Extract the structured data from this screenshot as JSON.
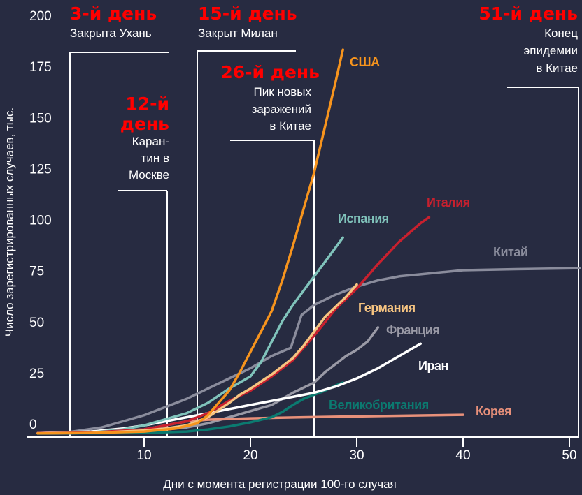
{
  "chart_data": {
    "type": "line",
    "title": "",
    "xlabel": "Дни с момента регистрации 100-го случая",
    "ylabel": "Число зарегистрированных случаев, тыс.",
    "xlim": [
      0,
      51
    ],
    "ylim": [
      0,
      200
    ],
    "xticks": [
      10,
      20,
      30,
      40,
      50
    ],
    "yticks": [
      0,
      25,
      50,
      75,
      100,
      125,
      150,
      175,
      200
    ],
    "grid": false,
    "legend": "inline labels at line ends",
    "background": "#272b41",
    "series": [
      {
        "name": "Китай",
        "color": "#8a8c9c",
        "points": [
          [
            0,
            0.3
          ],
          [
            3,
            0.8
          ],
          [
            6,
            3
          ],
          [
            8,
            6
          ],
          [
            10,
            9
          ],
          [
            12,
            13
          ],
          [
            14,
            17
          ],
          [
            16,
            22
          ],
          [
            18,
            27
          ],
          [
            20,
            32
          ],
          [
            22,
            38
          ],
          [
            23.8,
            42
          ],
          [
            24.8,
            58
          ],
          [
            26,
            63
          ],
          [
            28,
            68
          ],
          [
            30,
            72
          ],
          [
            32,
            75
          ],
          [
            34,
            77
          ],
          [
            36,
            78
          ],
          [
            38,
            79
          ],
          [
            40,
            80
          ],
          [
            45,
            80.5
          ],
          [
            51,
            81
          ]
        ]
      },
      {
        "name": "Франция",
        "color": "#9a9aa6",
        "points": [
          [
            0,
            0.1
          ],
          [
            10,
            1
          ],
          [
            14,
            3
          ],
          [
            16,
            5
          ],
          [
            18,
            8
          ],
          [
            20,
            11
          ],
          [
            22,
            14
          ],
          [
            23,
            17
          ],
          [
            24,
            20
          ],
          [
            26,
            25
          ],
          [
            27,
            30
          ],
          [
            28,
            34
          ],
          [
            29,
            38
          ],
          [
            30,
            41
          ],
          [
            31,
            45
          ],
          [
            32,
            52
          ]
        ]
      },
      {
        "name": "Корея",
        "color": "#e8907a",
        "points": [
          [
            0,
            0.2
          ],
          [
            5,
            0.6
          ],
          [
            10,
            2
          ],
          [
            12,
            4
          ],
          [
            14,
            6
          ],
          [
            16,
            6.8
          ],
          [
            20,
            7.5
          ],
          [
            25,
            8
          ],
          [
            30,
            8.4
          ],
          [
            35,
            8.8
          ],
          [
            40,
            9.2
          ]
        ]
      },
      {
        "name": "Великобритания",
        "color": "#0b7a70",
        "points": [
          [
            0,
            0
          ],
          [
            10,
            0.3
          ],
          [
            14,
            1
          ],
          [
            16,
            2
          ],
          [
            18,
            3.5
          ],
          [
            20,
            5.5
          ],
          [
            22,
            8
          ],
          [
            23,
            10.6
          ],
          [
            24,
            14
          ],
          [
            25,
            17
          ],
          [
            26,
            19
          ],
          [
            27,
            21
          ],
          [
            28,
            23.5
          ],
          [
            28.7,
            25
          ]
        ]
      },
      {
        "name": "Иран",
        "color": "#ffffff",
        "points": [
          [
            0,
            0.2
          ],
          [
            5,
            1
          ],
          [
            8,
            2.5
          ],
          [
            10,
            4
          ],
          [
            12,
            6
          ],
          [
            14,
            8
          ],
          [
            16,
            10
          ],
          [
            18,
            12
          ],
          [
            20,
            14
          ],
          [
            22,
            16
          ],
          [
            24,
            18
          ],
          [
            26,
            20
          ],
          [
            28,
            23
          ],
          [
            30,
            27
          ],
          [
            32,
            32
          ],
          [
            34,
            38
          ],
          [
            36,
            44
          ]
        ]
      },
      {
        "name": "Испания",
        "color": "#80c3bb",
        "points": [
          [
            0,
            0.2
          ],
          [
            5,
            0.5
          ],
          [
            8,
            2
          ],
          [
            10,
            4
          ],
          [
            12,
            7
          ],
          [
            14,
            10
          ],
          [
            16,
            15
          ],
          [
            18,
            22
          ],
          [
            20,
            28
          ],
          [
            21,
            35
          ],
          [
            22,
            45
          ],
          [
            23,
            55
          ],
          [
            24,
            63
          ],
          [
            25,
            70
          ],
          [
            26,
            77
          ],
          [
            27,
            84
          ],
          [
            28,
            91
          ],
          [
            28.7,
            96
          ]
        ]
      },
      {
        "name": "Италия",
        "color": "#c8202e",
        "points": [
          [
            0,
            0.2
          ],
          [
            5,
            0.5
          ],
          [
            10,
            2
          ],
          [
            12,
            4
          ],
          [
            14,
            6
          ],
          [
            16,
            10
          ],
          [
            18,
            16
          ],
          [
            20,
            21
          ],
          [
            22,
            28
          ],
          [
            24,
            36
          ],
          [
            26,
            48
          ],
          [
            28,
            61
          ],
          [
            30,
            71
          ],
          [
            32,
            83
          ],
          [
            34,
            94
          ],
          [
            36,
            103
          ],
          [
            36.8,
            106
          ]
        ]
      },
      {
        "name": "Германия",
        "color": "#f6c481",
        "points": [
          [
            0,
            0.1
          ],
          [
            5,
            0.3
          ],
          [
            10,
            1.5
          ],
          [
            12,
            2.5
          ],
          [
            14,
            4
          ],
          [
            16,
            8
          ],
          [
            18,
            15
          ],
          [
            19,
            19
          ],
          [
            20,
            22
          ],
          [
            22,
            29
          ],
          [
            24,
            37
          ],
          [
            25,
            43
          ],
          [
            26,
            50
          ],
          [
            27,
            57
          ],
          [
            28,
            62
          ],
          [
            29,
            67
          ],
          [
            30,
            73
          ]
        ]
      },
      {
        "name": "США",
        "color": "#f7941d",
        "points": [
          [
            0,
            0.1
          ],
          [
            5,
            0.3
          ],
          [
            10,
            1
          ],
          [
            13,
            2.5
          ],
          [
            15,
            5
          ],
          [
            16,
            9
          ],
          [
            17,
            15
          ],
          [
            18,
            21
          ],
          [
            19,
            30
          ],
          [
            20,
            40
          ],
          [
            21,
            50
          ],
          [
            22,
            60
          ],
          [
            23,
            75
          ],
          [
            24,
            92
          ],
          [
            25,
            110
          ],
          [
            26,
            128
          ],
          [
            27,
            150
          ],
          [
            28,
            172
          ],
          [
            28.7,
            188
          ]
        ]
      }
    ],
    "annotations": [
      {
        "day": 3,
        "title": "3-й день",
        "text": [
          "Закрыта Ухань"
        ]
      },
      {
        "day": 12,
        "title": [
          "12-й",
          "день"
        ],
        "text": [
          "Каран-",
          "тин в",
          "Москве"
        ]
      },
      {
        "day": 15,
        "title": "15-й день",
        "text": [
          "Закрыт Милан"
        ]
      },
      {
        "day": 26,
        "title": "26-й день",
        "text": [
          "Пик новых",
          "заражений",
          "в Китае"
        ]
      },
      {
        "day": 51,
        "title": "51-й день",
        "text": [
          "Конец",
          "эпидемии",
          "в Китае"
        ]
      }
    ],
    "annotation_title_color": "#ff0000"
  }
}
